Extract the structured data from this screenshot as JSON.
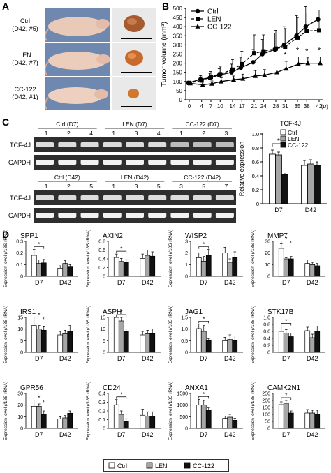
{
  "panels": {
    "A": "A",
    "B": "B",
    "C": "C",
    "D": "D"
  },
  "panel_a": {
    "rows": [
      {
        "group": "Ctrl",
        "info": "(D42, #5)"
      },
      {
        "group": "LEN",
        "info": "(D42, #7)"
      },
      {
        "group": "CC-122",
        "info": "(D42, #1)"
      }
    ]
  },
  "chart_data": [
    {
      "type": "line",
      "panel": "B",
      "x": [
        0,
        4,
        7,
        10,
        14,
        17,
        21,
        24,
        28,
        31,
        35,
        38,
        42
      ],
      "x_unit": "(D)",
      "ylabel": "Tumor volume (mm³)",
      "ylim": [
        0,
        500
      ],
      "yticks": [
        0,
        50,
        100,
        150,
        200,
        250,
        300,
        350,
        400,
        450,
        500
      ],
      "legend_position": "top-left",
      "series": [
        {
          "name": "Ctrl",
          "marker": "circle",
          "values": [
            92,
            112,
            120,
            135,
            150,
            175,
            205,
            250,
            275,
            300,
            350,
            400,
            440
          ],
          "err": [
            10,
            20,
            25,
            35,
            45,
            55,
            70,
            80,
            90,
            100,
            110,
            110,
            115
          ]
        },
        {
          "name": "LEN",
          "marker": "square",
          "values": [
            92,
            105,
            125,
            140,
            165,
            195,
            255,
            265,
            280,
            290,
            340,
            375,
            380
          ],
          "err": [
            10,
            20,
            30,
            40,
            55,
            70,
            100,
            90,
            100,
            100,
            110,
            100,
            110
          ]
        },
        {
          "name": "CC-122",
          "marker": "triangle",
          "values": [
            90,
            82,
            88,
            100,
            110,
            115,
            130,
            135,
            150,
            170,
            195,
            200,
            200
          ],
          "err": [
            8,
            15,
            15,
            20,
            20,
            25,
            30,
            30,
            35,
            40,
            40,
            30,
            35
          ]
        }
      ],
      "significance": "*",
      "significant_x": [
        31,
        35,
        38,
        42
      ]
    },
    {
      "type": "bar",
      "panel": "C",
      "title": "TCF-4J",
      "categories": [
        "D7",
        "D42"
      ],
      "ylabel": "Relative expression",
      "ylim": [
        0,
        1.0
      ],
      "yticks": [
        0,
        0.2,
        0.4,
        0.6,
        0.8,
        1.0
      ],
      "series": [
        {
          "name": "Ctrl",
          "values": [
            0.71,
            0.55
          ],
          "err": [
            0.06,
            0.07
          ]
        },
        {
          "name": "LEN",
          "values": [
            0.7,
            0.57
          ],
          "err": [
            0.04,
            0.06
          ]
        },
        {
          "name": "CC-122",
          "values": [
            0.42,
            0.55
          ],
          "err": [
            0.01,
            0.05
          ]
        }
      ],
      "significance": "*"
    },
    {
      "type": "bar",
      "panel": "D",
      "ylabel": "Expression level (/18S rRNA)",
      "categories": [
        "D7",
        "D42"
      ],
      "series_names": [
        "Ctrl",
        "LEN",
        "CC-122"
      ],
      "genes": [
        {
          "gene": "SPP1",
          "ylim": [
            0,
            0.3
          ],
          "yticks": [
            "0",
            "0.1",
            "0.2",
            "0.3"
          ],
          "values": [
            [
              0.18,
              0.11,
              0.115
            ],
            [
              0.07,
              0.11,
              0.08
            ]
          ],
          "err": [
            [
              0.05,
              0.03,
              0.03
            ],
            [
              0.02,
              0.025,
              0.02
            ]
          ]
        },
        {
          "gene": "AXIN2",
          "ylim": [
            0,
            0.8
          ],
          "yticks": [
            "0",
            "0.2",
            "0.4",
            "0.6",
            "0.8"
          ],
          "values": [
            [
              0.43,
              0.34,
              0.32
            ],
            [
              0.41,
              0.48,
              0.46
            ]
          ],
          "err": [
            [
              0.08,
              0.07,
              0.06
            ],
            [
              0.1,
              0.12,
              0.1
            ]
          ]
        },
        {
          "gene": "WISP2",
          "ylim": [
            0,
            3
          ],
          "yticks": [
            "0",
            "1",
            "2",
            "3"
          ],
          "values": [
            [
              1.6,
              1.3,
              1.8
            ],
            [
              2.0,
              1.2,
              1.6
            ]
          ],
          "err": [
            [
              0.4,
              0.4,
              0.5
            ],
            [
              0.5,
              0.3,
              0.5
            ]
          ]
        },
        {
          "gene": "MMP7",
          "ylim": [
            0,
            30
          ],
          "yticks": [
            "0",
            "10",
            "20",
            "30"
          ],
          "values": [
            [
              24,
              15,
              15
            ],
            [
              11,
              10,
              9
            ]
          ],
          "err": [
            [
              4,
              1,
              2
            ],
            [
              3,
              2,
              2
            ]
          ]
        },
        {
          "gene": "IRS1",
          "ylim": [
            0,
            15
          ],
          "yticks": [
            "0",
            "5",
            "10",
            "15"
          ],
          "values": [
            [
              11.5,
              10,
              9.5
            ],
            [
              7.5,
              8,
              9
            ]
          ],
          "err": [
            [
              2.5,
              1.5,
              1.5
            ],
            [
              1.5,
              1.5,
              2.5
            ]
          ]
        },
        {
          "gene": "ASPH",
          "ylim": [
            0,
            15
          ],
          "yticks": [
            "0",
            "5",
            "10",
            "15"
          ],
          "values": [
            [
              15,
              13.5,
              9
            ],
            [
              7.5,
              8,
              8
            ]
          ],
          "err": [
            [
              1,
              1.5,
              1
            ],
            [
              1.5,
              1.5,
              2
            ]
          ]
        },
        {
          "gene": "JAG1",
          "ylim": [
            0,
            1.5
          ],
          "yticks": [
            "0",
            "0.5",
            "1.0",
            "1.5"
          ],
          "values": [
            [
              1.02,
              0.9,
              0.5
            ],
            [
              0.5,
              0.55,
              0.5
            ]
          ],
          "err": [
            [
              0.2,
              0.25,
              0.08
            ],
            [
              0.15,
              0.2,
              0.2
            ]
          ]
        },
        {
          "gene": "STK17B",
          "ylim": [
            0,
            1.0
          ],
          "yticks": [
            "0",
            "0.2",
            "0.4",
            "0.6",
            "0.8",
            "1.0"
          ],
          "values": [
            [
              0.6,
              0.55,
              0.45
            ],
            [
              0.62,
              0.42,
              0.6
            ]
          ],
          "err": [
            [
              0.15,
              0.1,
              0.1
            ],
            [
              0.1,
              0.1,
              0.15
            ]
          ]
        },
        {
          "gene": "GPR56",
          "ylim": [
            0,
            30
          ],
          "yticks": [
            "0",
            "10",
            "20",
            "30"
          ],
          "values": [
            [
              19,
              19,
              12
            ],
            [
              8,
              9,
              13
            ]
          ],
          "err": [
            [
              3,
              2,
              3
            ],
            [
              2,
              2,
              2
            ]
          ]
        },
        {
          "gene": "CD24",
          "ylim": [
            0,
            0.4
          ],
          "yticks": [
            "0",
            "0.1",
            "0.2",
            "0.3",
            "0.4"
          ],
          "values": [
            [
              0.27,
              0.16,
              0.08
            ],
            [
              0.15,
              0.14,
              0.14
            ]
          ],
          "err": [
            [
              0.06,
              0.04,
              0.03
            ],
            [
              0.07,
              0.05,
              0.05
            ]
          ]
        },
        {
          "gene": "ANXA1",
          "ylim": [
            0,
            1500
          ],
          "yticks": [
            "0",
            "500",
            "1000",
            "1500"
          ],
          "values": [
            [
              1000,
              1000,
              780
            ],
            [
              430,
              480,
              350
            ]
          ],
          "err": [
            [
              250,
              200,
              100
            ],
            [
              100,
              120,
              80
            ]
          ]
        },
        {
          "gene": "CAMK2N1",
          "ylim": [
            0,
            250
          ],
          "yticks": [
            "0",
            "50",
            "100",
            "150",
            "200",
            "250"
          ],
          "values": [
            [
              170,
              180,
              110
            ],
            [
              110,
              110,
              100
            ]
          ],
          "err": [
            [
              20,
              20,
              15
            ],
            [
              25,
              20,
              30
            ]
          ]
        }
      ],
      "significance": "*"
    }
  ],
  "gel_data": {
    "marker_labels": [
      "TCF-4J",
      "GAPDH"
    ],
    "blocks": [
      {
        "groups": [
          {
            "name": "Ctrl (D7)",
            "lanes": [
              "1",
              "2",
              "4"
            ]
          },
          {
            "name": "LEN (D7)",
            "lanes": [
              "1",
              "3",
              "4"
            ]
          },
          {
            "name": "CC-122 (D7)",
            "lanes": [
              "1",
              "2",
              "3"
            ]
          }
        ]
      },
      {
        "groups": [
          {
            "name": "Ctrl (D42)",
            "lanes": [
              "1",
              "2",
              "5"
            ]
          },
          {
            "name": "LEN (D42)",
            "lanes": [
              "1",
              "3",
              "5"
            ]
          },
          {
            "name": "CC-122 (D42)",
            "lanes": [
              "3",
              "5",
              "7"
            ]
          }
        ]
      }
    ]
  },
  "legend": [
    "Ctrl",
    "LEN",
    "CC-122"
  ],
  "colors": {
    "ctrl": "#ffffff",
    "len": "#a6a6a6",
    "cc122": "#111111",
    "gel_bg": "#2e2e2e",
    "gel_band": "#e8e8e8"
  }
}
